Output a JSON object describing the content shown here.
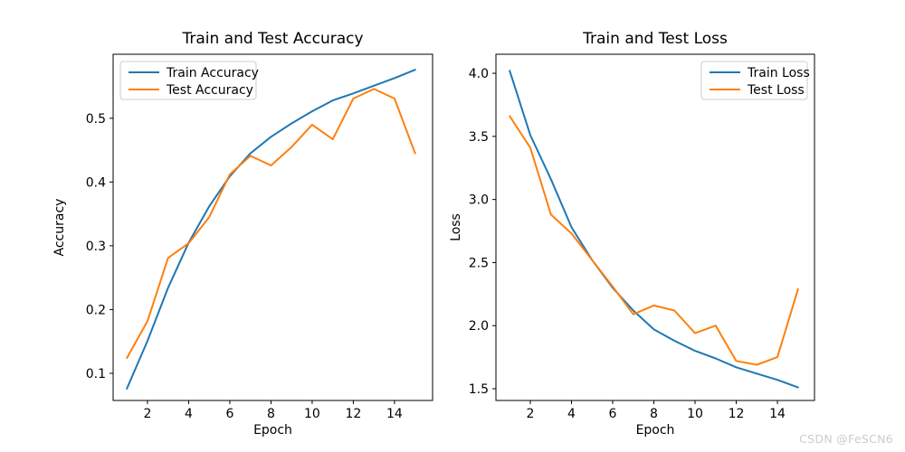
{
  "watermark": "CSDN @FeSCN6",
  "colors": {
    "train": "#1f77b4",
    "test": "#ff7f0e",
    "text": "#000000",
    "spine": "#000000",
    "legend_border": "#cccccc",
    "watermark": "#cccccc",
    "background": "#ffffff"
  },
  "chart_data": [
    {
      "type": "line",
      "title": "Train and Test Accuracy",
      "xlabel": "Epoch",
      "ylabel": "Accuracy",
      "x": [
        1,
        2,
        3,
        4,
        5,
        6,
        7,
        8,
        9,
        10,
        11,
        12,
        13,
        14,
        15
      ],
      "series": [
        {
          "name": "Train Accuracy",
          "color": "#1f77b4",
          "values": [
            0.076,
            0.151,
            0.234,
            0.305,
            0.362,
            0.409,
            0.445,
            0.471,
            0.492,
            0.511,
            0.528,
            0.539,
            0.551,
            0.563,
            0.576
          ]
        },
        {
          "name": "Test Accuracy",
          "color": "#ff7f0e",
          "values": [
            0.124,
            0.182,
            0.281,
            0.304,
            0.345,
            0.412,
            0.441,
            0.426,
            0.455,
            0.49,
            0.467,
            0.531,
            0.546,
            0.531,
            0.445
          ]
        }
      ],
      "xticks": [
        2,
        4,
        6,
        8,
        10,
        12,
        14
      ],
      "yticks": [
        {
          "value": 0.1,
          "label": "0.1"
        },
        {
          "value": 0.2,
          "label": "0.2"
        },
        {
          "value": 0.3,
          "label": "0.3"
        },
        {
          "value": 0.4,
          "label": "0.4"
        },
        {
          "value": 0.5,
          "label": "0.5"
        }
      ],
      "xlim": [
        0.33,
        15.85
      ],
      "ylim": [
        0.0574,
        0.6004
      ],
      "grid": false,
      "legend_position": "upper-left"
    },
    {
      "type": "line",
      "title": "Train and Test Loss",
      "xlabel": "Epoch",
      "ylabel": "Loss",
      "x": [
        1,
        2,
        3,
        4,
        5,
        6,
        7,
        8,
        9,
        10,
        11,
        12,
        13,
        14,
        15
      ],
      "series": [
        {
          "name": "Train Loss",
          "color": "#1f77b4",
          "values": [
            4.02,
            3.51,
            3.16,
            2.78,
            2.52,
            2.3,
            2.12,
            1.97,
            1.88,
            1.8,
            1.74,
            1.67,
            1.62,
            1.57,
            1.51
          ]
        },
        {
          "name": "Test Loss",
          "color": "#ff7f0e",
          "values": [
            3.66,
            3.41,
            2.88,
            2.73,
            2.52,
            2.31,
            2.09,
            2.16,
            2.12,
            1.94,
            2.0,
            1.72,
            1.69,
            1.75,
            2.29
          ]
        }
      ],
      "xticks": [
        2,
        4,
        6,
        8,
        10,
        12,
        14
      ],
      "yticks": [
        {
          "value": 1.5,
          "label": "1.5"
        },
        {
          "value": 2.0,
          "label": "2.0"
        },
        {
          "value": 2.5,
          "label": "2.5"
        },
        {
          "value": 3.0,
          "label": "3.0"
        },
        {
          "value": 3.5,
          "label": "3.5"
        },
        {
          "value": 4.0,
          "label": "4.0"
        }
      ],
      "xlim": [
        0.33,
        15.8
      ],
      "ylim": [
        1.407,
        4.151
      ],
      "grid": false,
      "legend_position": "upper-right"
    }
  ]
}
